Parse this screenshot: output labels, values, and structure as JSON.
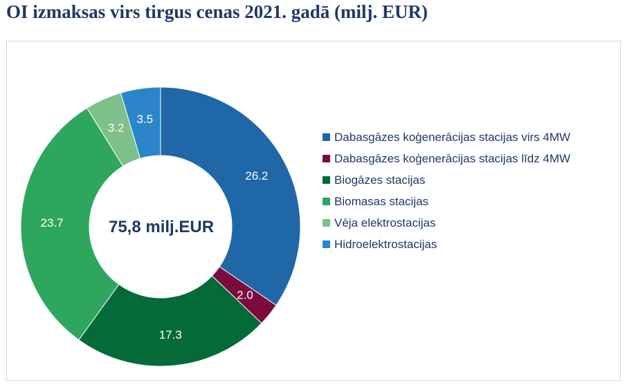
{
  "title": "OI izmaksas virs tirgus cenas 2021. gadā (milj. EUR)",
  "center_label": "75,8 milj.EUR",
  "chart_data": {
    "type": "pie",
    "donut": true,
    "title": "OI izmaksas virs tirgus cenas 2021. gadā (milj. EUR)",
    "center_text": "75,8 milj.EUR",
    "legend_position": "right",
    "slices": [
      {
        "label": "Dabasgāzes koģenerācijas stacijas virs 4MW",
        "value": 26.2,
        "value_label": "26.2",
        "color": "#1f67a7"
      },
      {
        "label": "Dabasgāzes koģenerācijas stacijas līdz 4MW",
        "value": 2.0,
        "value_label": "2.0",
        "color": "#7b0b3f"
      },
      {
        "label": "Biogāzes stacijas",
        "value": 17.3,
        "value_label": "17.3",
        "color": "#046b38"
      },
      {
        "label": "Biomasas stacijas",
        "value": 23.7,
        "value_label": "23.7",
        "color": "#2ea65e"
      },
      {
        "label": "Vēja elektrostacijas",
        "value": 3.2,
        "value_label": "3.2",
        "color": "#7dc08a"
      },
      {
        "label": "Hidroelektrostacijas",
        "value": 3.5,
        "value_label": "3.5",
        "color": "#2a86c8"
      }
    ]
  }
}
